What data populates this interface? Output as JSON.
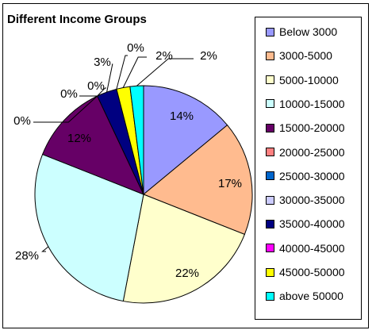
{
  "chart_data": {
    "type": "pie",
    "title": "Different Income Groups",
    "legend_position": "right",
    "categories": [
      "Below 3000",
      "3000-5000",
      "5000-10000",
      "10000-15000",
      "15000-20000",
      "20000-25000",
      "25000-30000",
      "30000-35000",
      "35000-40000",
      "40000-45000",
      "45000-50000",
      "above 50000"
    ],
    "values": [
      14,
      17,
      22,
      28,
      12,
      0,
      0,
      0,
      3,
      0,
      2,
      2
    ],
    "labels": [
      "14%",
      "17%",
      "22%",
      "28%",
      "12%",
      "0%",
      "0%",
      "0%",
      "3%",
      "0%",
      "2%",
      "2%"
    ],
    "colors": [
      "#9999ff",
      "#ffbb8f",
      "#ffffcc",
      "#ccffff",
      "#660066",
      "#ff8080",
      "#0066cc",
      "#ccccff",
      "#000080",
      "#ff00ff",
      "#ffff00",
      "#00ffff"
    ]
  }
}
